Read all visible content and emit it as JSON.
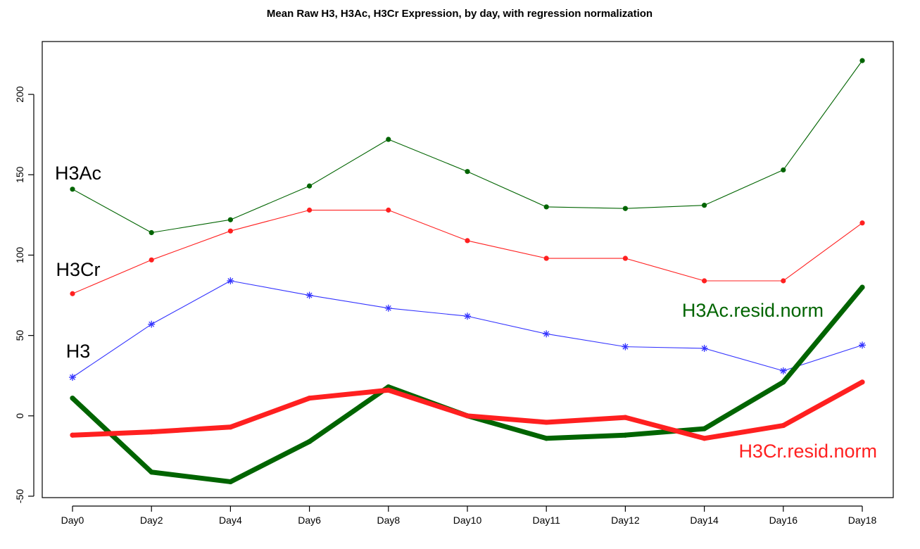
{
  "chart_data": {
    "type": "line",
    "title": "Mean Raw H3, H3Ac, H3Cr Expression, by day, with regression normalization",
    "xlabel": "",
    "ylabel": "",
    "categories": [
      "Day0",
      "Day2",
      "Day4",
      "Day6",
      "Day8",
      "Day10",
      "Day11",
      "Day12",
      "Day14",
      "Day16",
      "Day18"
    ],
    "ylim": [
      -50,
      225
    ],
    "yticks": [
      -50,
      0,
      50,
      100,
      150,
      200
    ],
    "grid": false,
    "series": [
      {
        "name": "H3Ac",
        "color": "#006400",
        "style": "thin",
        "marker": "dot",
        "values": [
          141,
          114,
          122,
          143,
          172,
          152,
          130,
          129,
          131,
          153,
          221
        ]
      },
      {
        "name": "H3Cr",
        "color": "#ff2020",
        "style": "thin",
        "marker": "dot",
        "values": [
          76,
          97,
          115,
          128,
          128,
          109,
          98,
          98,
          84,
          84,
          120
        ]
      },
      {
        "name": "H3",
        "color": "#3333ff",
        "style": "thin",
        "marker": "asterisk",
        "values": [
          24,
          57,
          84,
          75,
          67,
          62,
          51,
          43,
          42,
          28,
          44
        ]
      },
      {
        "name": "H3Ac.resid.norm",
        "color": "#006400",
        "style": "thick",
        "marker": "dot",
        "values": [
          11,
          -35,
          -41,
          -16,
          18,
          0,
          -14,
          -12,
          -8,
          21,
          80
        ]
      },
      {
        "name": "H3Cr.resid.norm",
        "color": "#ff2020",
        "style": "thick",
        "marker": "dot",
        "values": [
          -12,
          -10,
          -7,
          11,
          16,
          0,
          -4,
          -1,
          -14,
          -6,
          21
        ]
      }
    ],
    "annotations": [
      {
        "series": "H3Ac",
        "text": "H3Ac",
        "color": "#000000",
        "anchor": "before-first",
        "dy": 10
      },
      {
        "series": "H3Cr",
        "text": "H3Cr",
        "color": "#000000",
        "anchor": "before-first",
        "dy": 30
      },
      {
        "series": "H3",
        "text": "H3",
        "color": "#000000",
        "anchor": "before-first",
        "dy": 30
      },
      {
        "series": "H3Ac.resid.norm",
        "text": "H3Ac.resid.norm",
        "color": "#006400",
        "anchor": "end-right",
        "dy": 30
      },
      {
        "series": "H3Cr.resid.norm",
        "text": "H3Cr.resid.norm",
        "color": "#ff2020",
        "anchor": "end-right",
        "dy": -25
      }
    ]
  }
}
